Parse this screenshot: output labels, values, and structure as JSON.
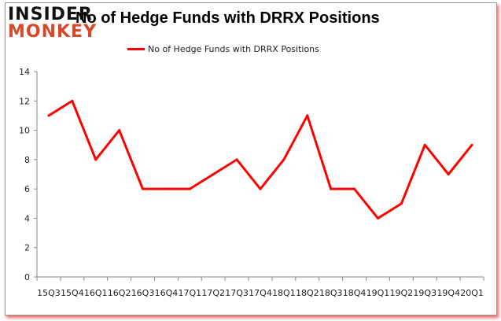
{
  "logo": {
    "line1": "INSIDER",
    "line2": "MONKEY"
  },
  "chart_data": {
    "type": "line",
    "title": "No of Hedge Funds with DRRX Positions",
    "categories": [
      "15Q3",
      "15Q4",
      "16Q1",
      "16Q2",
      "16Q3",
      "16Q4",
      "17Q1",
      "17Q2",
      "17Q3",
      "17Q4",
      "18Q1",
      "18Q2",
      "18Q3",
      "18Q4",
      "19Q1",
      "19Q2",
      "19Q3",
      "19Q4",
      "20Q1"
    ],
    "series": [
      {
        "name": "No of Hedge Funds with DRRX Positions",
        "values": [
          11,
          12,
          8,
          10,
          6,
          6,
          6,
          7,
          8,
          6,
          8,
          11,
          6,
          6,
          4,
          5,
          9,
          7,
          9
        ],
        "color": "#ff0000"
      }
    ],
    "ylim": [
      0,
      14
    ],
    "yticks": [
      0,
      2,
      4,
      6,
      8,
      10,
      12,
      14
    ],
    "grid": false,
    "legend": "top-center"
  }
}
